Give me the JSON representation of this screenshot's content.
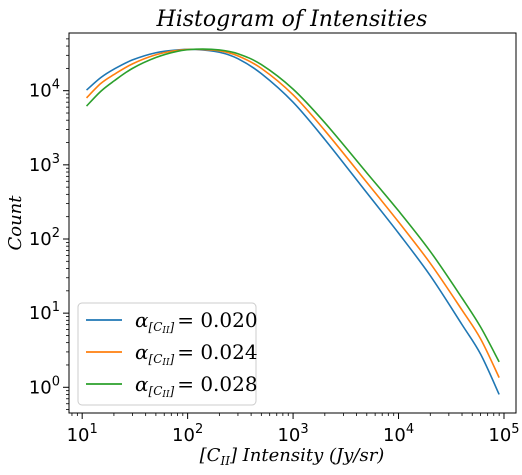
{
  "chart_data": {
    "type": "line",
    "title": "Histogram of Intensities",
    "xlabel": "[C_II] Intensity (Jy/sr)",
    "ylabel": "Count",
    "xscale": "log",
    "yscale": "log",
    "xlim": [
      7.5,
      130000
    ],
    "ylim": [
      0.45,
      60000
    ],
    "grid": false,
    "legend_position": "lower-left",
    "x_ticks": [
      {
        "value": 10,
        "base": "10",
        "exp": "1"
      },
      {
        "value": 100,
        "base": "10",
        "exp": "2"
      },
      {
        "value": 1000,
        "base": "10",
        "exp": "3"
      },
      {
        "value": 10000,
        "base": "10",
        "exp": "4"
      },
      {
        "value": 100000,
        "base": "10",
        "exp": "5"
      }
    ],
    "y_ticks": [
      {
        "value": 1,
        "base": "10",
        "exp": "0"
      },
      {
        "value": 10,
        "base": "10",
        "exp": "1"
      },
      {
        "value": 100,
        "base": "10",
        "exp": "2"
      },
      {
        "value": 1000,
        "base": "10",
        "exp": "3"
      },
      {
        "value": 10000,
        "base": "10",
        "exp": "4"
      }
    ],
    "series": [
      {
        "name": "α[CII] = 0.020",
        "legend_prefix": "α",
        "legend_sub": "[C",
        "legend_sub_ii": "II",
        "legend_sub_end": "]",
        "legend_value": "= 0.020",
        "color": "#1f77b4",
        "x": [
          11,
          15,
          20,
          30,
          50,
          80,
          120,
          200,
          300,
          500,
          1000,
          2000,
          5000,
          10000,
          20000,
          40000,
          60000,
          90000
        ],
        "y": [
          10200,
          15000,
          19500,
          26000,
          32500,
          35500,
          36000,
          33000,
          27000,
          17000,
          7000,
          2200,
          420,
          120,
          32,
          7,
          2.8,
          0.8
        ]
      },
      {
        "name": "α[CII] = 0.024",
        "legend_prefix": "α",
        "legend_sub": "[C",
        "legend_sub_ii": "II",
        "legend_sub_end": "]",
        "legend_value": "= 0.024",
        "color": "#ff7f0e",
        "x": [
          11,
          15,
          20,
          30,
          50,
          80,
          120,
          200,
          300,
          500,
          1000,
          2000,
          5000,
          10000,
          20000,
          40000,
          60000,
          90000
        ],
        "y": [
          8000,
          12500,
          16500,
          23000,
          30500,
          35000,
          36200,
          34500,
          29500,
          20000,
          8800,
          2900,
          580,
          170,
          47,
          11,
          4.5,
          1.35
        ]
      },
      {
        "name": "α[CII] = 0.028",
        "legend_prefix": "α",
        "legend_sub": "[C",
        "legend_sub_ii": "II",
        "legend_sub_end": "]",
        "legend_value": "= 0.028",
        "color": "#2ca02c",
        "x": [
          11,
          15,
          20,
          30,
          50,
          80,
          120,
          200,
          300,
          500,
          1000,
          2000,
          5000,
          10000,
          20000,
          40000,
          60000,
          90000
        ],
        "y": [
          6200,
          9800,
          13500,
          20000,
          28000,
          34000,
          36300,
          35500,
          31500,
          22500,
          10500,
          3700,
          780,
          240,
          68,
          16,
          6.5,
          2.2
        ]
      }
    ]
  }
}
